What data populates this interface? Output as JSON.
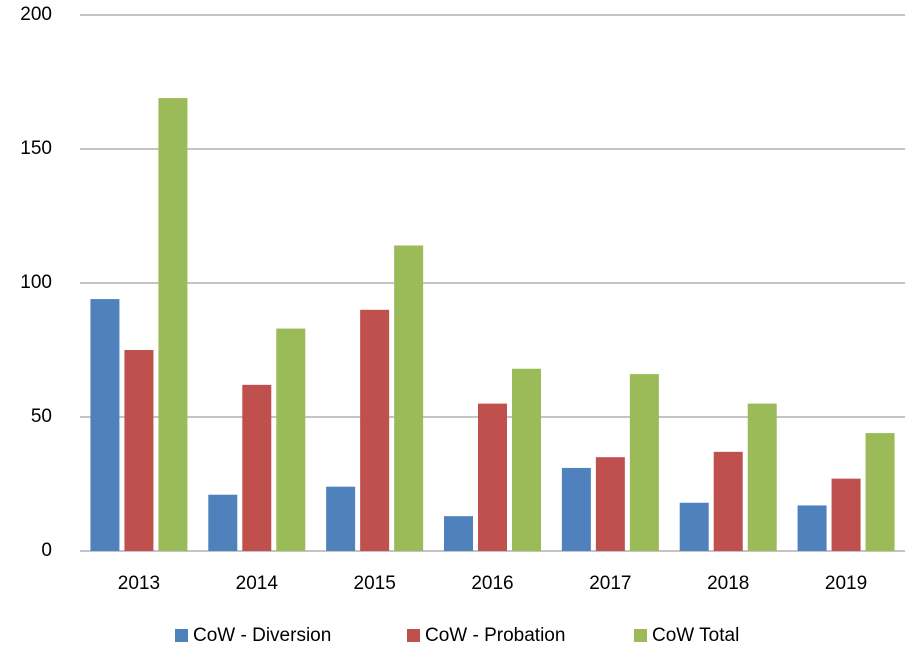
{
  "chart_data": {
    "type": "bar",
    "categories": [
      "2013",
      "2014",
      "2015",
      "2016",
      "2017",
      "2018",
      "2019"
    ],
    "series": [
      {
        "name": "CoW - Diversion",
        "color": "#4f81bd",
        "values": [
          94,
          21,
          24,
          13,
          31,
          18,
          17
        ]
      },
      {
        "name": "CoW - Probation",
        "color": "#c0504d",
        "values": [
          75,
          62,
          90,
          55,
          35,
          37,
          27
        ]
      },
      {
        "name": "CoW Total",
        "color": "#9bbb59",
        "values": [
          169,
          83,
          114,
          68,
          66,
          55,
          44
        ]
      }
    ],
    "ylim": [
      0,
      200
    ],
    "yticks": [
      0,
      50,
      100,
      150,
      200
    ],
    "grid": true,
    "legend": "bottom"
  }
}
